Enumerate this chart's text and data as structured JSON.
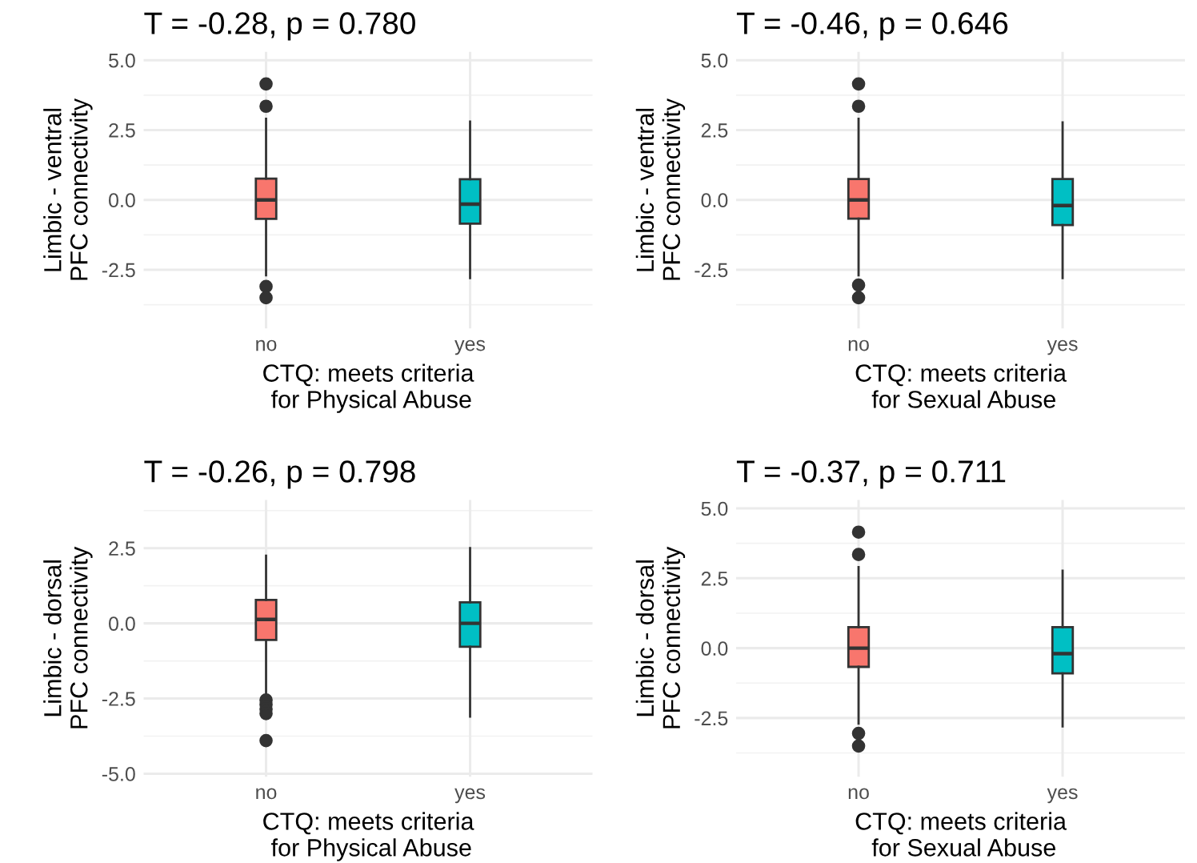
{
  "chart_data": [
    {
      "type": "box",
      "title": "T = -0.28, p = 0.780",
      "xlabel": "CTQ: meets criteria\n for Physical Abuse",
      "ylabel": "Limbic - ventral\nPFC connectivity",
      "categories": [
        "no",
        "yes"
      ],
      "colors": [
        "#f8766d",
        "#00bfc4"
      ],
      "ylim": [
        -4.6,
        5.3
      ],
      "yticks": [
        {
          "value": -2.5,
          "label": "-2.5"
        },
        {
          "value": 0,
          "label": "0.0"
        },
        {
          "value": 2.5,
          "label": "2.5"
        },
        {
          "value": 5,
          "label": "5.0"
        }
      ],
      "grid": true,
      "boxes": [
        {
          "low": -2.7,
          "q1": -0.68,
          "median": 0,
          "q3": 0.76,
          "high": 2.9,
          "outliers": [
            4.15,
            3.35,
            -3.1,
            -3.5
          ]
        },
        {
          "low": -2.8,
          "q1": -0.85,
          "median": -0.15,
          "q3": 0.74,
          "high": 2.8
        }
      ]
    },
    {
      "type": "box",
      "title": "T = -0.46, p = 0.646",
      "xlabel": "CTQ: meets criteria\n for Sexual Abuse",
      "ylabel": "Limbic - ventral\nPFC connectivity",
      "categories": [
        "no",
        "yes"
      ],
      "colors": [
        "#f8766d",
        "#00bfc4"
      ],
      "ylim": [
        -4.6,
        5.3
      ],
      "yticks": [
        {
          "value": -2.5,
          "label": "-2.5"
        },
        {
          "value": 0,
          "label": "0.0"
        },
        {
          "value": 2.5,
          "label": "2.5"
        },
        {
          "value": 5,
          "label": "5.0"
        }
      ],
      "grid": true,
      "boxes": [
        {
          "low": -2.7,
          "q1": -0.67,
          "median": 0,
          "q3": 0.75,
          "high": 2.9,
          "outliers": [
            4.15,
            3.35,
            -3.05,
            -3.5
          ]
        },
        {
          "low": -2.8,
          "q1": -0.9,
          "median": -0.2,
          "q3": 0.75,
          "high": 2.77
        }
      ]
    },
    {
      "type": "box",
      "title": "T = -0.26, p = 0.798",
      "xlabel": "CTQ: meets criteria\n for Physical Abuse",
      "ylabel": "Limbic - dorsal\nPFC connectivity",
      "categories": [
        "no",
        "yes"
      ],
      "colors": [
        "#f8766d",
        "#00bfc4"
      ],
      "ylim": [
        -5.1,
        4.1
      ],
      "yticks": [
        {
          "value": -5,
          "label": "-5.0"
        },
        {
          "value": -2.5,
          "label": "-2.5"
        },
        {
          "value": 0,
          "label": "0.0"
        },
        {
          "value": 2.5,
          "label": "2.5"
        }
      ],
      "grid": true,
      "boxes": [
        {
          "low": -2.4,
          "q1": -0.55,
          "median": 0.13,
          "q3": 0.78,
          "high": 2.25,
          "outliers": [
            -2.55,
            -2.7,
            -2.85,
            -3.0,
            -3.9
          ]
        },
        {
          "low": -3.1,
          "q1": -0.78,
          "median": 0,
          "q3": 0.7,
          "high": 2.5
        }
      ]
    },
    {
      "type": "box",
      "title": "T = -0.37, p = 0.711",
      "xlabel": "CTQ: meets criteria\n for Sexual Abuse",
      "ylabel": "Limbic - dorsal\nPFC connectivity",
      "categories": [
        "no",
        "yes"
      ],
      "colors": [
        "#f8766d",
        "#00bfc4"
      ],
      "ylim": [
        -4.6,
        5.3
      ],
      "yticks": [
        {
          "value": -2.5,
          "label": "-2.5"
        },
        {
          "value": 0,
          "label": "0.0"
        },
        {
          "value": 2.5,
          "label": "2.5"
        },
        {
          "value": 5,
          "label": "5.0"
        }
      ],
      "grid": true,
      "boxes": [
        {
          "low": -2.7,
          "q1": -0.67,
          "median": 0,
          "q3": 0.75,
          "high": 2.9,
          "outliers": [
            4.15,
            3.35,
            -3.05,
            -3.5
          ]
        },
        {
          "low": -2.8,
          "q1": -0.9,
          "median": -0.2,
          "q3": 0.75,
          "high": 2.77
        }
      ]
    }
  ]
}
